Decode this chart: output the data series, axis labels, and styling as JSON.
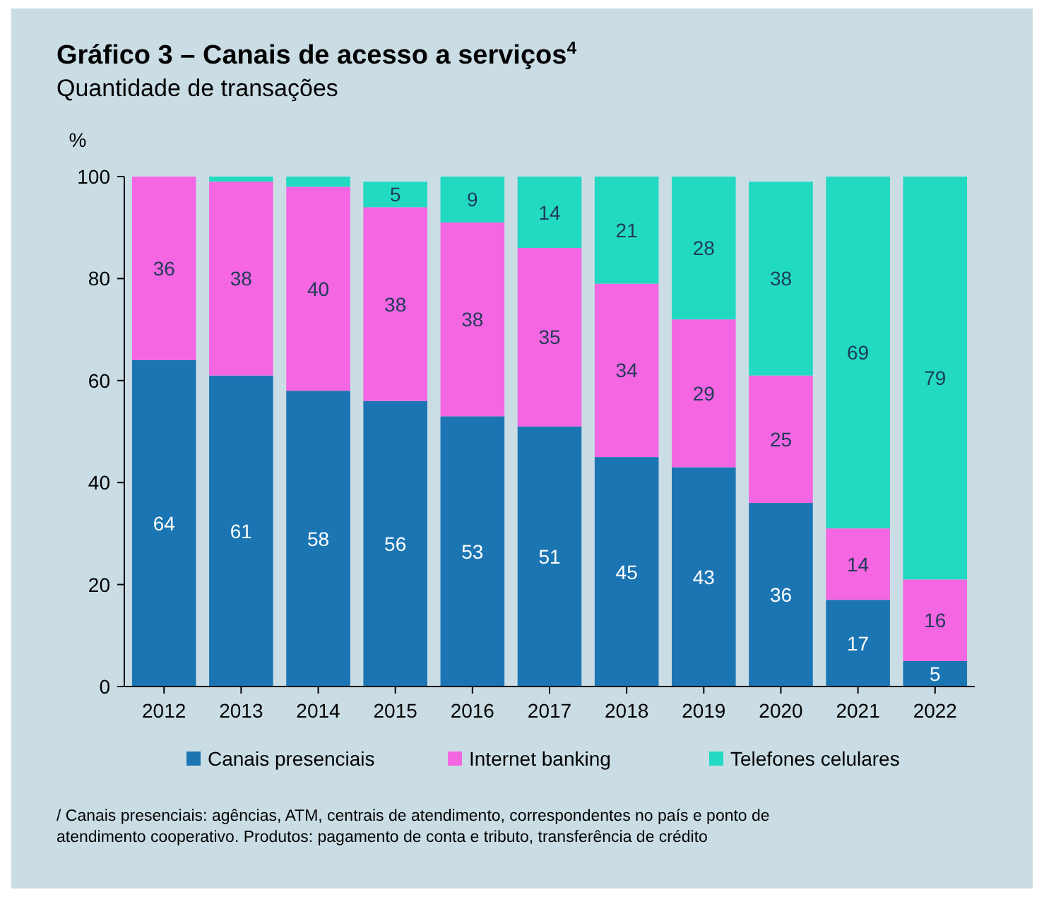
{
  "chart_data": {
    "type": "bar",
    "stacked": true,
    "title": "Gráfico 3 – Canais de acesso a serviços$^{4}$",
    "subtitle": "Quantidade de transações",
    "ylabel": "%",
    "categories": [
      "2012",
      "2013",
      "2014",
      "2015",
      "2016",
      "2017",
      "2018",
      "2019",
      "2020",
      "2021",
      "2022"
    ],
    "ylim": [
      0,
      100
    ],
    "yticks": [
      0,
      20,
      40,
      60,
      80,
      100
    ],
    "grid": false,
    "legend": "bottom",
    "series": [
      {
        "name": "Canais presenciais",
        "color": "#1b75b3",
        "values": [
          64,
          61,
          58,
          56,
          53,
          51,
          45,
          43,
          36,
          17,
          5
        ],
        "value_labels": [
          "64",
          "61",
          "58",
          "56",
          "53",
          "51",
          "45",
          "43",
          "36",
          "17",
          "5"
        ]
      },
      {
        "name": "Internet banking",
        "color": "#f466e2",
        "values": [
          36,
          38,
          40,
          38,
          38,
          35,
          34,
          29,
          25,
          14,
          16
        ],
        "value_labels": [
          "36",
          "38",
          "40",
          "38",
          "38",
          "35",
          "34",
          "29",
          "25",
          "14",
          "16"
        ]
      },
      {
        "name": "Telefones celulares",
        "color": "#22d9c2",
        "values": [
          0,
          1,
          2,
          5,
          9,
          14,
          21,
          28,
          38,
          69,
          79
        ],
        "value_labels": [
          null,
          null,
          null,
          "5",
          "9",
          "14",
          "21",
          "28",
          "38",
          "69",
          "79"
        ]
      }
    ],
    "annotations": [
      "/ Canais presenciais: agências, ATM, centrais de atendimento, correspondentes no país e ponto de atendimento cooperativo. Produtos: pagamento de conta e tributo, transferência de crédito"
    ]
  }
}
